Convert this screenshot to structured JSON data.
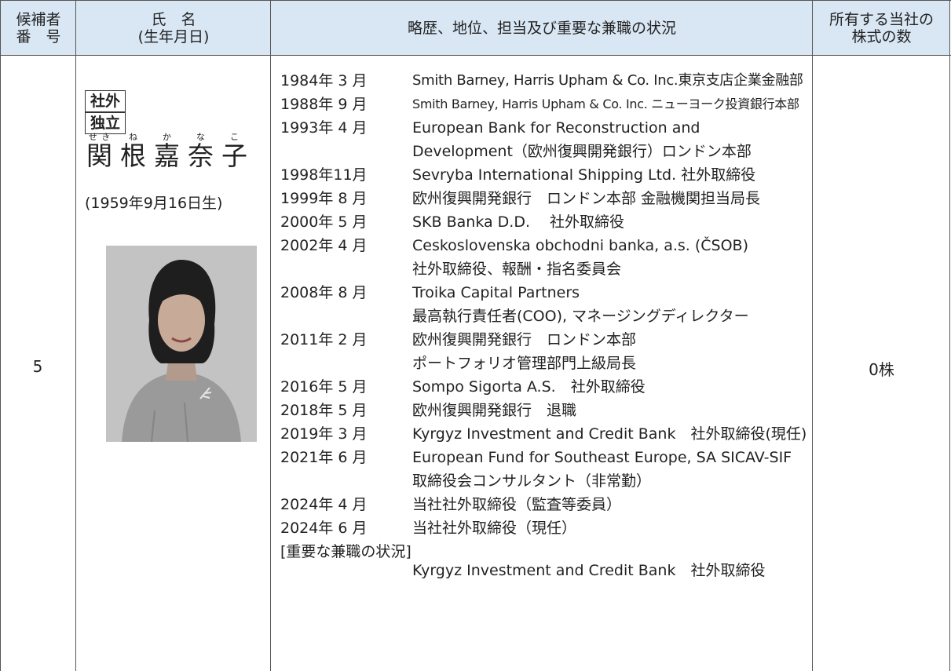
{
  "table": {
    "headers": [
      [
        "候補者",
        "番　号"
      ],
      [
        "氏　名",
        "(生年月日)"
      ],
      [
        "略歴、地位、担当及び重要な兼職の状況"
      ],
      [
        "所有する当社の",
        "株式の数"
      ]
    ],
    "row": {
      "number": "5",
      "badges": [
        "社外",
        "独立"
      ],
      "name": [
        {
          "kanji": "関",
          "ruby": "せき"
        },
        {
          "kanji": "根",
          "ruby": "ね"
        },
        {
          "kanji": "嘉",
          "ruby": "か"
        },
        {
          "kanji": "奈",
          "ruby": "な"
        },
        {
          "kanji": "子",
          "ruby": "こ"
        }
      ],
      "birth": "(1959年9月16日生)",
      "career": [
        {
          "date": "1984年 3 月",
          "lines": [
            "Smith Barney, Harris Upham & Co. Inc.東京支店企業金融部"
          ]
        },
        {
          "date": "1988年 9 月",
          "lines": [
            "Smith Barney, Harris Upham & Co. Inc. ニューヨーク投資銀行本部"
          ]
        },
        {
          "date": "1993年 4 月",
          "lines": [
            "European Bank for Reconstruction and",
            "Development（欧州復興開発銀行）ロンドン本部"
          ]
        },
        {
          "date": "1998年11月",
          "lines": [
            "Sevryba International Shipping Ltd. 社外取締役"
          ]
        },
        {
          "date": "1999年 8 月",
          "lines": [
            "欧州復興開発銀行　ロンドン本部 金融機関担当局長"
          ]
        },
        {
          "date": "2000年 5 月",
          "lines": [
            "SKB Banka D.D.　 社外取締役"
          ]
        },
        {
          "date": "2002年 4 月",
          "lines": [
            "Ceskoslovenska obchodni banka, a.s. (ČSOB)",
            "社外取締役、報酬・指名委員会"
          ]
        },
        {
          "date": "2008年 8 月",
          "lines": [
            "Troika Capital Partners",
            "最高執行責任者(COO), マネージングディレクター"
          ]
        },
        {
          "date": "2011年 2 月",
          "lines": [
            "欧州復興開発銀行　ロンドン本部",
            "ポートフォリオ管理部門上級局長"
          ]
        },
        {
          "date": "2016年 5 月",
          "lines": [
            "Sompo Sigorta A.S.　社外取締役"
          ]
        },
        {
          "date": "2018年 5 月",
          "lines": [
            "欧州復興開発銀行　退職"
          ]
        },
        {
          "date": "2019年 3 月",
          "lines": [
            "Kyrgyz Investment and Credit Bank　社外取締役(現任)"
          ]
        },
        {
          "date": "2021年 6 月",
          "lines": [
            "European Fund for Southeast Europe, SA SICAV-SIF",
            "取締役会コンサルタント（非常勤）"
          ]
        },
        {
          "date": "2024年 4 月",
          "lines": [
            "当社社外取締役（監査等委員）"
          ]
        },
        {
          "date": "2024年 6 月",
          "lines": [
            "当社社外取締役（現任）"
          ]
        }
      ],
      "concurrent_heading": "[重要な兼職の状況]",
      "concurrent": [
        "Kyrgyz Investment and Credit Bank　社外取締役"
      ],
      "shares": "0株"
    }
  }
}
